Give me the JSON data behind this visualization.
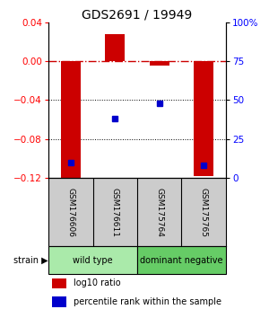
{
  "title": "GDS2691 / 19949",
  "samples": [
    "GSM176606",
    "GSM176611",
    "GSM175764",
    "GSM175765"
  ],
  "log10_ratio": [
    -0.122,
    0.028,
    -0.005,
    -0.118
  ],
  "percentile_rank": [
    10,
    38,
    48,
    8
  ],
  "ylim_left": [
    -0.12,
    0.04
  ],
  "ylim_right": [
    0,
    100
  ],
  "yticks_left": [
    0.04,
    0,
    -0.04,
    -0.08,
    -0.12
  ],
  "yticks_right": [
    100,
    75,
    50,
    25,
    0
  ],
  "bar_color": "#cc0000",
  "dot_color": "#0000cc",
  "groups": [
    {
      "label": "wild type",
      "samples": [
        0,
        1
      ],
      "color": "#aaeaaa"
    },
    {
      "label": "dominant negative",
      "samples": [
        2,
        3
      ],
      "color": "#66cc66"
    }
  ],
  "strain_label": "strain",
  "legend_bar_label": "log10 ratio",
  "legend_dot_label": "percentile rank within the sample",
  "zero_line_color": "#cc0000",
  "dot_grid_color": "#000000",
  "sample_bg_color": "#cccccc",
  "background_color": "#ffffff"
}
